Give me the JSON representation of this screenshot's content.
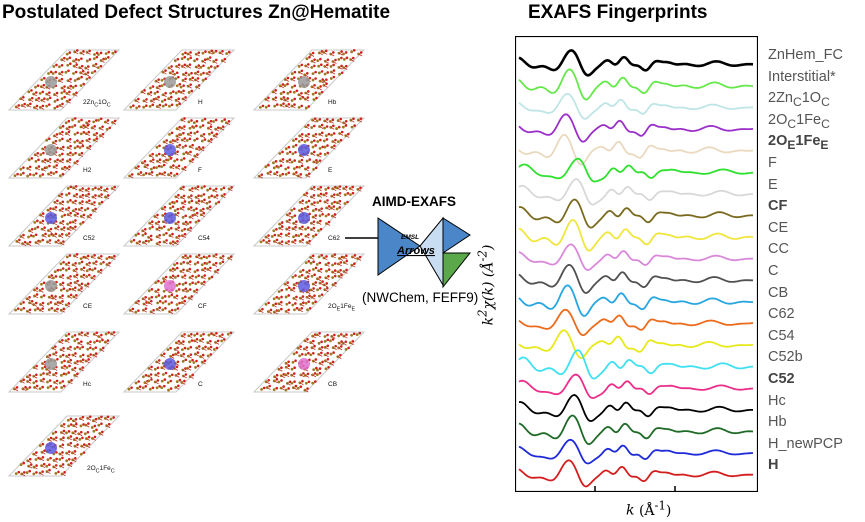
{
  "left_panel": {
    "title": "Postulated Defect Structures Zn@Hematite"
  },
  "right_panel": {
    "title": "EXAFS Fingerprints"
  },
  "process": {
    "label": "AIMD-EXAFS",
    "logo_small": "EMSL",
    "logo_text": "Arrows",
    "engines": "(NWChem, FEFF9)"
  },
  "structures": [
    {
      "label": "2Zn₀1Oₑ",
      "html": "2Zn<sub>C</sub>1O<sub>C</sub>",
      "defect_color": "#9a9a9a"
    },
    {
      "label": "H",
      "defect_color": "#9a9a9a"
    },
    {
      "label": "Hb",
      "defect_color": "#9a9a9a"
    },
    {
      "label": "H2",
      "defect_color": "#9a9a9a"
    },
    {
      "label": "F",
      "defect_color": "#5b5be0"
    },
    {
      "label": "E",
      "defect_color": "#5b5be0"
    },
    {
      "label": "C52",
      "defect_color": "#5b5be0"
    },
    {
      "label": "C54",
      "defect_color": "#5b5be0"
    },
    {
      "label": "C62",
      "defect_color": "#5b5be0"
    },
    {
      "label": "CE",
      "defect_color": "#9a9a9a"
    },
    {
      "label": "CF",
      "defect_color": "#e070d0"
    },
    {
      "label": "2OE1FeE",
      "html": "2O<sub>E</sub>1Fe<sub>E</sub>",
      "defect_color": "#5b5be0"
    },
    {
      "label": "Hc",
      "defect_color": "#9a9a9a"
    },
    {
      "label": "C",
      "defect_color": "#5b5be0"
    },
    {
      "label": "CB",
      "defect_color": "#e070d0"
    },
    {
      "label": "2OC1FeC",
      "html": "2O<sub>C</sub>1Fe<sub>C</sub>",
      "defect_color": "#5b5be0"
    }
  ],
  "chart_data": {
    "type": "line",
    "title": "EXAFS Fingerprints",
    "xlabel": "k (Å-1)",
    "ylabel": "k2χ(k) (Å-2)",
    "series": [
      {
        "name": "ZnHem_FC",
        "color": "#000000",
        "bold": false,
        "html": "ZnHem_FC"
      },
      {
        "name": "Interstitial*",
        "color": "#66e84a",
        "bold": false,
        "html": "Interstitial*"
      },
      {
        "name": "2ZnC1OC",
        "color": "#bfe5e5",
        "bold": false,
        "html": "2Zn<sub>C</sub>1O<sub>C</sub>"
      },
      {
        "name": "2OC1FeC",
        "color": "#9b2fc9",
        "bold": false,
        "html": "2O<sub>C</sub>1Fe<sub>C</sub>"
      },
      {
        "name": "2OE1FeE",
        "color": "#ead9bf",
        "bold": true,
        "html": "2O<sub>E</sub>1Fe<sub>E</sub>"
      },
      {
        "name": "F",
        "color": "#2fe02f",
        "bold": false,
        "html": "F"
      },
      {
        "name": "E",
        "color": "#d8d8d8",
        "bold": false,
        "html": "E"
      },
      {
        "name": "CF",
        "color": "#7a6a1f",
        "bold": true,
        "html": "CF"
      },
      {
        "name": "CE",
        "color": "#f0e63c",
        "bold": false,
        "html": "CE"
      },
      {
        "name": "CC",
        "color": "#d989d9",
        "bold": false,
        "html": "CC"
      },
      {
        "name": "C",
        "color": "#505050",
        "bold": false,
        "html": "C"
      },
      {
        "name": "CB",
        "color": "#27a6e0",
        "bold": false,
        "html": "CB"
      },
      {
        "name": "C62",
        "color": "#ec6b1c",
        "bold": false,
        "html": "C62"
      },
      {
        "name": "C54",
        "color": "#e8e81a",
        "bold": false,
        "html": "C54"
      },
      {
        "name": "C52b",
        "color": "#3fe0f0",
        "bold": false,
        "html": "C52b"
      },
      {
        "name": "C52",
        "color": "#ec2e8a",
        "bold": true,
        "html": "C52"
      },
      {
        "name": "Hc",
        "color": "#000000",
        "bold": false,
        "html": "Hc"
      },
      {
        "name": "Hb",
        "color": "#1e6a26",
        "bold": false,
        "html": "Hb"
      },
      {
        "name": "H_newPCP",
        "color": "#1f2ad8",
        "bold": false,
        "html": "H_newPCP"
      },
      {
        "name": "H",
        "color": "#d41e1e",
        "bold": true,
        "html": "H"
      }
    ]
  }
}
